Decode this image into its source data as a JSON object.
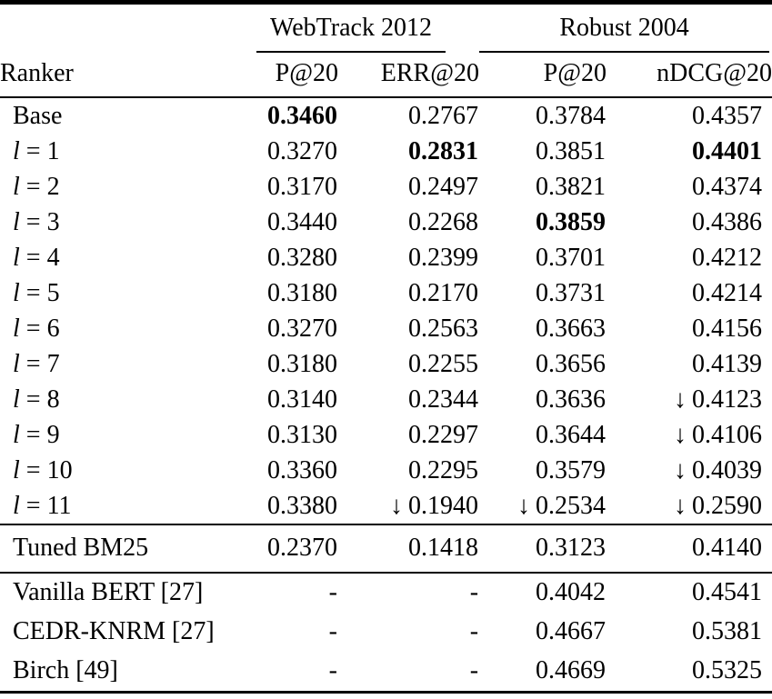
{
  "page": {
    "background": "#ffffff",
    "text_color": "#000000"
  },
  "icons": {
    "down_arrow": "↓"
  },
  "table": {
    "group_headers": [
      {
        "label": "WebTrack 2012"
      },
      {
        "label": "Robust 2004"
      }
    ],
    "column_headers": [
      "Ranker",
      "P@20",
      "ERR@20",
      "P@20",
      "nDCG@20"
    ],
    "sections": [
      {
        "rows": [
          {
            "italic": "",
            "text": "Base",
            "cells": [
              {
                "text": "0.3460",
                "bold": true
              },
              {
                "text": "0.2767"
              },
              {
                "text": "0.3784"
              },
              {
                "text": "0.4357"
              }
            ]
          },
          {
            "italic": "l",
            "text": " = 1",
            "cells": [
              {
                "text": "0.3270"
              },
              {
                "text": "0.2831",
                "bold": true
              },
              {
                "text": "0.3851"
              },
              {
                "text": "0.4401",
                "bold": true
              }
            ]
          },
          {
            "italic": "l",
            "text": " = 2",
            "cells": [
              {
                "text": "0.3170"
              },
              {
                "text": "0.2497"
              },
              {
                "text": "0.3821"
              },
              {
                "text": "0.4374"
              }
            ]
          },
          {
            "italic": "l",
            "text": " = 3",
            "cells": [
              {
                "text": "0.3440"
              },
              {
                "text": "0.2268"
              },
              {
                "text": "0.3859",
                "bold": true
              },
              {
                "text": "0.4386"
              }
            ]
          },
          {
            "italic": "l",
            "text": " = 4",
            "cells": [
              {
                "text": "0.3280"
              },
              {
                "text": "0.2399"
              },
              {
                "text": "0.3701"
              },
              {
                "text": "0.4212"
              }
            ]
          },
          {
            "italic": "l",
            "text": " = 5",
            "cells": [
              {
                "text": "0.3180"
              },
              {
                "text": "0.2170"
              },
              {
                "text": "0.3731"
              },
              {
                "text": "0.4214"
              }
            ]
          },
          {
            "italic": "l",
            "text": " = 6",
            "cells": [
              {
                "text": "0.3270"
              },
              {
                "text": "0.2563"
              },
              {
                "text": "0.3663"
              },
              {
                "text": "0.4156"
              }
            ]
          },
          {
            "italic": "l",
            "text": " = 7",
            "cells": [
              {
                "text": "0.3180"
              },
              {
                "text": "0.2255"
              },
              {
                "text": "0.3656"
              },
              {
                "text": "0.4139"
              }
            ]
          },
          {
            "italic": "l",
            "text": " = 8",
            "cells": [
              {
                "text": "0.3140"
              },
              {
                "text": "0.2344"
              },
              {
                "text": "0.3636"
              },
              {
                "text": "0.4123",
                "arrow": true
              }
            ]
          },
          {
            "italic": "l",
            "text": " = 9",
            "cells": [
              {
                "text": "0.3130"
              },
              {
                "text": "0.2297"
              },
              {
                "text": "0.3644"
              },
              {
                "text": "0.4106",
                "arrow": true
              }
            ]
          },
          {
            "italic": "l",
            "text": " = 10",
            "cells": [
              {
                "text": "0.3360"
              },
              {
                "text": "0.2295"
              },
              {
                "text": "0.3579"
              },
              {
                "text": "0.4039",
                "arrow": true
              }
            ]
          },
          {
            "italic": "l",
            "text": " = 11",
            "cells": [
              {
                "text": "0.3380"
              },
              {
                "text": "0.1940",
                "arrow": true
              },
              {
                "text": "0.2534",
                "arrow": true
              },
              {
                "text": "0.2590",
                "arrow": true
              }
            ]
          }
        ]
      },
      {
        "rows": [
          {
            "italic": "",
            "text": "Tuned BM25",
            "cells": [
              {
                "text": "0.2370"
              },
              {
                "text": "0.1418"
              },
              {
                "text": "0.3123"
              },
              {
                "text": "0.4140"
              }
            ]
          }
        ]
      },
      {
        "rows": [
          {
            "italic": "",
            "text": "Vanilla BERT [27]",
            "cells": [
              {
                "text": "-"
              },
              {
                "text": "-"
              },
              {
                "text": "0.4042"
              },
              {
                "text": "0.4541"
              }
            ]
          },
          {
            "italic": "",
            "text": "CEDR-KNRM [27]",
            "cells": [
              {
                "text": "-"
              },
              {
                "text": "-"
              },
              {
                "text": "0.4667"
              },
              {
                "text": "0.5381"
              }
            ]
          },
          {
            "italic": "",
            "text": "Birch [49]",
            "cells": [
              {
                "text": "-"
              },
              {
                "text": "-"
              },
              {
                "text": "0.4669"
              },
              {
                "text": "0.5325"
              }
            ]
          }
        ]
      }
    ]
  }
}
